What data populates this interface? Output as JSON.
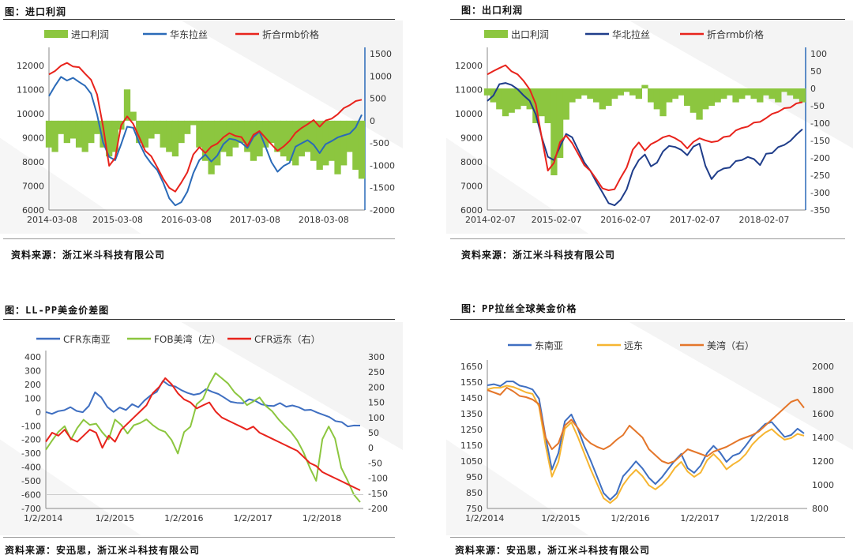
{
  "panels": [
    {
      "title": "图：进口利润",
      "source": "资料来源：浙江米斗科技有限公司"
    },
    {
      "title": "图：出口利润",
      "source": "资料来源：浙江米斗科技有限公司"
    },
    {
      "title": "图：LL-PP美金价差图",
      "source": "资料来源：安迅思，浙江米斗科技有限公司"
    },
    {
      "title": "图：PP拉丝全球美金价格",
      "source": "资料来源：安迅思，浙江米斗科技有限公司"
    }
  ],
  "chart_data": [
    {
      "type": "line",
      "legend_placement": "top",
      "series": [
        {
          "name": "进口利润",
          "kind": "area",
          "axis": "right",
          "color": "#8cc63f",
          "values": [
            -600,
            -700,
            -300,
            -500,
            -400,
            -600,
            -700,
            -500,
            -300,
            -600,
            -800,
            -700,
            -200,
            700,
            200,
            -500,
            -600,
            -400,
            -300,
            -600,
            -700,
            -800,
            -500,
            -300,
            -100,
            -600,
            -900,
            -1200,
            -1000,
            -700,
            -800,
            -600,
            -500,
            -700,
            -900,
            -800,
            -600,
            -500,
            -700,
            -800,
            -900,
            -1000,
            -800,
            -700,
            -900,
            -1100,
            -1000,
            -900,
            -1200,
            -1000,
            -700,
            -1100,
            -1300
          ]
        },
        {
          "name": "华东拉丝",
          "kind": "line",
          "axis": "left",
          "color": "#2a6ab8",
          "values": [
            10700,
            11200,
            11500,
            11400,
            11500,
            11300,
            11200,
            10800,
            10000,
            8800,
            8200,
            8100,
            8700,
            9500,
            9400,
            8800,
            8300,
            7900,
            7700,
            7100,
            6500,
            6200,
            6300,
            6800,
            7500,
            8100,
            8300,
            8000,
            8300,
            8700,
            9000,
            8900,
            8800,
            8600,
            9000,
            9300,
            8600,
            8000,
            7600,
            7800,
            8000,
            8600,
            8800,
            8900,
            8700,
            8400,
            8700,
            8900,
            9000,
            9100,
            9200,
            9400,
            10000
          ]
        },
        {
          "name": "折合rmb价格",
          "kind": "line",
          "axis": "left",
          "color": "#e8231c",
          "values": [
            11600,
            11800,
            12000,
            12100,
            12000,
            11900,
            11700,
            11400,
            10800,
            9500,
            7800,
            8200,
            9500,
            9900,
            9600,
            9000,
            8500,
            8200,
            7800,
            7300,
            6900,
            6800,
            7100,
            7600,
            8300,
            8600,
            8400,
            8600,
            8800,
            9000,
            9200,
            9100,
            9000,
            8700,
            9100,
            9300,
            9000,
            8700,
            8500,
            8600,
            8900,
            9200,
            9400,
            9600,
            9700,
            9500,
            9700,
            9800,
            10000,
            10200,
            10400,
            10500,
            10600
          ]
        }
      ],
      "x_ticks": [
        "2014-03-08",
        "2015-03-08",
        "2016-03-08",
        "2017-03-08",
        "2018-03-08"
      ],
      "y_left_ticks": [
        "12000",
        "11000",
        "10000",
        "9000",
        "8000",
        "7000",
        "6000"
      ],
      "y_right_ticks": [
        "1500",
        "1000",
        "500",
        "0",
        "-500",
        "-1000",
        "-1500",
        "-2000"
      ],
      "ylim_left": [
        6000,
        12500
      ],
      "ylim_right": [
        -2000,
        1500
      ],
      "grid": false
    },
    {
      "type": "line",
      "legend_placement": "top",
      "series": [
        {
          "name": "出口利润",
          "kind": "area",
          "axis": "right",
          "color": "#8cc63f",
          "values": [
            -20,
            -40,
            -60,
            -80,
            -70,
            -60,
            -50,
            -60,
            -100,
            -80,
            -100,
            -250,
            -200,
            -90,
            -40,
            -30,
            -20,
            -30,
            -40,
            -60,
            -50,
            -30,
            -20,
            -10,
            -20,
            -30,
            10,
            -40,
            -60,
            -80,
            -40,
            -30,
            -20,
            -50,
            -70,
            -90,
            -60,
            -50,
            -40,
            -30,
            -20,
            -40,
            -30,
            -20,
            -30,
            -40,
            -20,
            -30,
            -40,
            -10,
            -20,
            -30,
            -40
          ]
        },
        {
          "name": "华北拉丝",
          "kind": "line",
          "axis": "left",
          "color": "#1f3d8a",
          "values": [
            10500,
            10800,
            11200,
            11300,
            11200,
            11000,
            10800,
            10500,
            10000,
            9000,
            8200,
            8100,
            8600,
            9200,
            9000,
            8500,
            8000,
            7600,
            7200,
            6700,
            6300,
            6200,
            6400,
            6900,
            7600,
            8100,
            8300,
            7800,
            8000,
            8400,
            8700,
            8600,
            8500,
            8300,
            8600,
            8800,
            7800,
            7300,
            7600,
            7700,
            7800,
            8000,
            8100,
            8200,
            8100,
            7900,
            8300,
            8400,
            8600,
            8700,
            8900,
            9100,
            9400
          ]
        },
        {
          "name": "折合rmb价格",
          "kind": "line",
          "axis": "left",
          "color": "#e8231c",
          "values": [
            11600,
            11800,
            11900,
            12000,
            11800,
            11600,
            11400,
            11000,
            10400,
            9000,
            7600,
            8000,
            8800,
            9100,
            8800,
            8300,
            7900,
            7600,
            7300,
            6900,
            6800,
            6900,
            7300,
            7800,
            8500,
            8800,
            8500,
            8700,
            8900,
            9000,
            9100,
            9000,
            8800,
            8600,
            8800,
            9000,
            8900,
            8800,
            8900,
            9000,
            9100,
            9300,
            9400,
            9500,
            9600,
            9700,
            9800,
            10000,
            10100,
            10200,
            10300,
            10400,
            10500
          ]
        }
      ],
      "x_ticks": [
        "2014-02-07",
        "2015-02-07",
        "2016-02-07",
        "2017-02-07",
        "2018-02-07"
      ],
      "y_left_ticks": [
        "12000",
        "11000",
        "10000",
        "9000",
        "8000",
        "7000",
        "6000"
      ],
      "y_right_ticks": [
        "100",
        "50",
        "0",
        "-50",
        "-100",
        "-150",
        "-200",
        "-250",
        "-300",
        "-350"
      ],
      "ylim_left": [
        6000,
        12500
      ],
      "ylim_right": [
        -350,
        100
      ],
      "grid": false
    },
    {
      "type": "line",
      "legend_placement": "top",
      "series": [
        {
          "name": "CFR东南亚",
          "axis": "left",
          "color": "#3f6fc1",
          "values": [
            0,
            -10,
            0,
            20,
            30,
            10,
            0,
            40,
            150,
            100,
            40,
            0,
            30,
            20,
            50,
            40,
            80,
            120,
            150,
            220,
            200,
            180,
            160,
            140,
            120,
            140,
            160,
            150,
            130,
            100,
            80,
            60,
            70,
            90,
            80,
            60,
            40,
            50,
            60,
            40,
            50,
            30,
            20,
            10,
            0,
            -20,
            -40,
            -60,
            -80,
            -100,
            -100,
            -100
          ]
        },
        {
          "name": "FOB美湾（左）",
          "axis": "left",
          "color": "#8cc63f",
          "values": [
            -280,
            -200,
            -150,
            -100,
            -200,
            -120,
            -50,
            -100,
            -80,
            -150,
            -200,
            -50,
            -100,
            -150,
            -100,
            -80,
            -50,
            -100,
            -120,
            -150,
            -200,
            -300,
            -150,
            -100,
            50,
            100,
            200,
            280,
            250,
            200,
            150,
            100,
            50,
            80,
            100,
            50,
            0,
            -50,
            -100,
            -150,
            -200,
            -300,
            -400,
            -500,
            -200,
            -100,
            -200,
            -400,
            -500,
            -600,
            -650
          ]
        },
        {
          "name": "CFR远东（右）",
          "axis": "right",
          "color": "#e8231c",
          "values": [
            20,
            50,
            40,
            60,
            30,
            20,
            40,
            60,
            50,
            0,
            40,
            20,
            60,
            80,
            100,
            120,
            140,
            180,
            200,
            230,
            210,
            180,
            160,
            150,
            130,
            140,
            150,
            120,
            100,
            90,
            80,
            70,
            60,
            70,
            50,
            40,
            30,
            20,
            10,
            0,
            -10,
            -30,
            -50,
            -60,
            -80,
            -90,
            -100,
            -110,
            -120,
            -130,
            -140
          ]
        }
      ],
      "x_ticks": [
        "1/2/2014",
        "1/2/2015",
        "1/2/2016",
        "1/2/2017",
        "1/2/2018"
      ],
      "y_left_ticks": [
        "400",
        "300",
        "200",
        "100",
        "0",
        "-100",
        "-200",
        "-300",
        "-400",
        "-500",
        "-600",
        "-700"
      ],
      "y_right_ticks": [
        "300",
        "250",
        "200",
        "150",
        "100",
        "50",
        "0",
        "-50",
        "-100",
        "-150",
        "-200"
      ],
      "ylim_left": [
        -700,
        400
      ],
      "ylim_right": [
        -200,
        300
      ],
      "grid": false
    },
    {
      "type": "line",
      "legend_placement": "top",
      "series": [
        {
          "name": "东南亚",
          "axis": "left",
          "color": "#3f6fc1",
          "values": [
            1530,
            1540,
            1520,
            1560,
            1550,
            1530,
            1520,
            1500,
            1450,
            1200,
            1000,
            1100,
            1300,
            1350,
            1250,
            1150,
            1050,
            950,
            850,
            800,
            850,
            950,
            1000,
            1050,
            1000,
            950,
            900,
            950,
            1000,
            1050,
            1100,
            1000,
            980,
            1020,
            1100,
            1150,
            1100,
            1050,
            1080,
            1100,
            1150,
            1200,
            1250,
            1280,
            1300,
            1250,
            1200,
            1220,
            1250,
            1230
          ]
        },
        {
          "name": "远东",
          "axis": "left",
          "color": "#f6b531",
          "values": [
            1500,
            1520,
            1510,
            1530,
            1520,
            1500,
            1490,
            1470,
            1400,
            1150,
            950,
            1050,
            1250,
            1300,
            1200,
            1100,
            1000,
            900,
            820,
            780,
            820,
            900,
            950,
            1000,
            950,
            900,
            870,
            900,
            950,
            1000,
            1050,
            980,
            950,
            980,
            1050,
            1100,
            1050,
            1000,
            1030,
            1050,
            1100,
            1150,
            1200,
            1230,
            1250,
            1220,
            1180,
            1200,
            1220,
            1210
          ]
        },
        {
          "name": "美湾（右）",
          "axis": "right",
          "color": "#e4762a",
          "values": [
            1800,
            1780,
            1760,
            1820,
            1790,
            1750,
            1740,
            1720,
            1680,
            1400,
            1300,
            1350,
            1500,
            1550,
            1480,
            1400,
            1350,
            1320,
            1300,
            1330,
            1380,
            1420,
            1500,
            1450,
            1400,
            1300,
            1250,
            1200,
            1180,
            1200,
            1250,
            1300,
            1280,
            1260,
            1240,
            1280,
            1300,
            1320,
            1350,
            1380,
            1400,
            1420,
            1450,
            1500,
            1550,
            1600,
            1650,
            1700,
            1720,
            1650
          ]
        }
      ],
      "x_ticks": [
        "1/2/2014",
        "1/2/2015",
        "1/2/2016",
        "1/2/2017",
        "1/2/2018"
      ],
      "y_left_ticks": [
        "1650",
        "1550",
        "1450",
        "1350",
        "1250",
        "1150",
        "1050",
        "950",
        "850",
        "750"
      ],
      "y_right_ticks": [
        "2000",
        "1800",
        "1600",
        "1400",
        "1200",
        "1000",
        "800"
      ],
      "ylim_left": [
        750,
        1650
      ],
      "ylim_right": [
        800,
        2000
      ],
      "grid": false
    }
  ]
}
